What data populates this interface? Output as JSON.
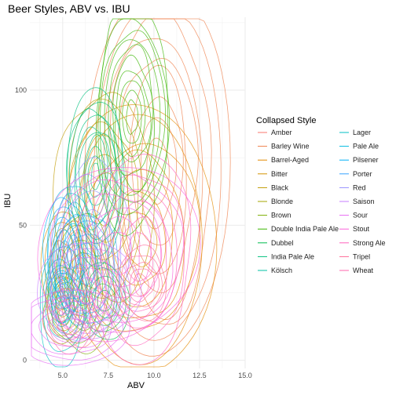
{
  "chart_data": {
    "type": "contour-density",
    "title": "Beer Styles, ABV vs. IBU",
    "xlabel": "ABV",
    "ylabel": "IBU",
    "xlim": [
      3.2,
      15.0
    ],
    "ylim": [
      -3,
      127
    ],
    "xticks": [
      5.0,
      7.5,
      10.0,
      12.5,
      15.0
    ],
    "xtick_labels": [
      "5.0",
      "7.5",
      "10.0",
      "12.5",
      "15.0"
    ],
    "yticks": [
      0,
      50,
      100
    ],
    "ytick_labels": [
      "0",
      "50",
      "100"
    ],
    "grid": true,
    "legend": {
      "title": "Collapsed Style",
      "placement": "right",
      "columns": 2
    },
    "series": [
      {
        "name": "Amber",
        "color": "#F8766D",
        "center": [
          5.9,
          28
        ],
        "spread": [
          0.6,
          10
        ],
        "levels": 5
      },
      {
        "name": "Barley Wine",
        "color": "#EF7F49",
        "center": [
          10.2,
          70
        ],
        "spread": [
          1.6,
          32
        ],
        "levels": 9
      },
      {
        "name": "Barrel-Aged",
        "color": "#E38900",
        "center": [
          9.2,
          45
        ],
        "spread": [
          1.8,
          22
        ],
        "levels": 7
      },
      {
        "name": "Bitter",
        "color": "#D39200",
        "center": [
          5.0,
          35
        ],
        "spread": [
          0.5,
          9
        ],
        "levels": 5
      },
      {
        "name": "Black",
        "color": "#C09B00",
        "center": [
          7.3,
          60
        ],
        "spread": [
          1.1,
          18
        ],
        "levels": 6
      },
      {
        "name": "Blonde",
        "color": "#A3A500",
        "center": [
          5.1,
          20
        ],
        "spread": [
          0.5,
          6
        ],
        "levels": 5
      },
      {
        "name": "Brown",
        "color": "#7CAE00",
        "center": [
          6.0,
          28
        ],
        "spread": [
          0.8,
          11
        ],
        "levels": 5
      },
      {
        "name": "Double India Pale Ale",
        "color": "#39B600",
        "center": [
          8.8,
          90
        ],
        "spread": [
          0.9,
          18
        ],
        "levels": 10
      },
      {
        "name": "Dubbel",
        "color": "#00BB4E",
        "center": [
          7.3,
          22
        ],
        "spread": [
          0.6,
          6
        ],
        "levels": 5
      },
      {
        "name": "India Pale Ale",
        "color": "#00BF7D",
        "center": [
          6.8,
          68
        ],
        "spread": [
          0.7,
          14
        ],
        "levels": 10
      },
      {
        "name": "Kölsch",
        "color": "#00C1A3",
        "center": [
          4.9,
          24
        ],
        "spread": [
          0.3,
          5
        ],
        "levels": 5
      },
      {
        "name": "Lager",
        "color": "#00BFC4",
        "center": [
          5.0,
          20
        ],
        "spread": [
          0.6,
          9
        ],
        "levels": 5
      },
      {
        "name": "Pale Ale",
        "color": "#00BAE0",
        "center": [
          5.6,
          40
        ],
        "spread": [
          0.6,
          11
        ],
        "levels": 6
      },
      {
        "name": "Pilsener",
        "color": "#00B0F6",
        "center": [
          5.1,
          38
        ],
        "spread": [
          0.5,
          10
        ],
        "levels": 5
      },
      {
        "name": "Porter",
        "color": "#35A2FF",
        "center": [
          6.3,
          34
        ],
        "spread": [
          0.8,
          9
        ],
        "levels": 5
      },
      {
        "name": "Red",
        "color": "#9590FF",
        "center": [
          6.5,
          40
        ],
        "spread": [
          0.9,
          15
        ],
        "levels": 5
      },
      {
        "name": "Saison",
        "color": "#C77CFF",
        "center": [
          6.4,
          26
        ],
        "spread": [
          1.2,
          8
        ],
        "levels": 6
      },
      {
        "name": "Sour",
        "color": "#E76BF3",
        "center": [
          5.5,
          12
        ],
        "spread": [
          1.4,
          6
        ],
        "levels": 6
      },
      {
        "name": "Stout",
        "color": "#FA62DB",
        "center": [
          8.0,
          40
        ],
        "spread": [
          1.8,
          15
        ],
        "levels": 7
      },
      {
        "name": "Strong Ale",
        "color": "#FF62BC",
        "center": [
          9.2,
          38
        ],
        "spread": [
          1.3,
          16
        ],
        "levels": 6
      },
      {
        "name": "Tripel",
        "color": "#FF6A98",
        "center": [
          9.3,
          28
        ],
        "spread": [
          0.6,
          6
        ],
        "levels": 5
      },
      {
        "name": "Wheat",
        "color": "#FF65AE",
        "center": [
          5.3,
          15
        ],
        "spread": [
          0.6,
          5
        ],
        "levels": 5
      }
    ]
  }
}
